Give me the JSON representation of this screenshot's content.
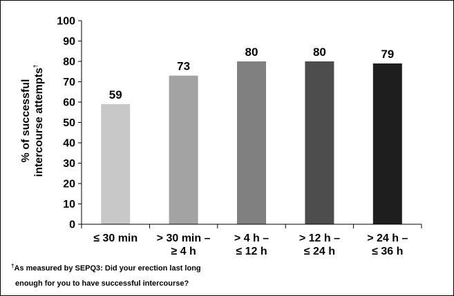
{
  "chart_data": {
    "type": "bar",
    "title": "",
    "ylabel_line1": "% of successful",
    "ylabel_line2": "intercourse attempts",
    "ylabel_marker": "†",
    "xlabel": "",
    "ylim": [
      0,
      100
    ],
    "yticks": [
      0,
      10,
      20,
      30,
      40,
      50,
      60,
      70,
      80,
      90,
      100
    ],
    "grid": false,
    "legend": "none",
    "categories": [
      [
        "≤ 30 min"
      ],
      [
        "> 30 min –",
        "≥ 4 h"
      ],
      [
        "> 4 h –",
        "≤ 12 h"
      ],
      [
        "> 12 h –",
        "≤ 24 h"
      ],
      [
        "> 24 h –",
        "≤ 36 h"
      ]
    ],
    "values": [
      59,
      73,
      80,
      80,
      79
    ],
    "bar_colors": [
      "#c8c8c8",
      "#a3a3a3",
      "#808080",
      "#4d4d4d",
      "#1e1e1e"
    ]
  },
  "footnote": {
    "marker": "†",
    "line1": "As measured by SEPQ3: Did your erection last long",
    "line2": "enough for you to have successful intercourse?"
  }
}
